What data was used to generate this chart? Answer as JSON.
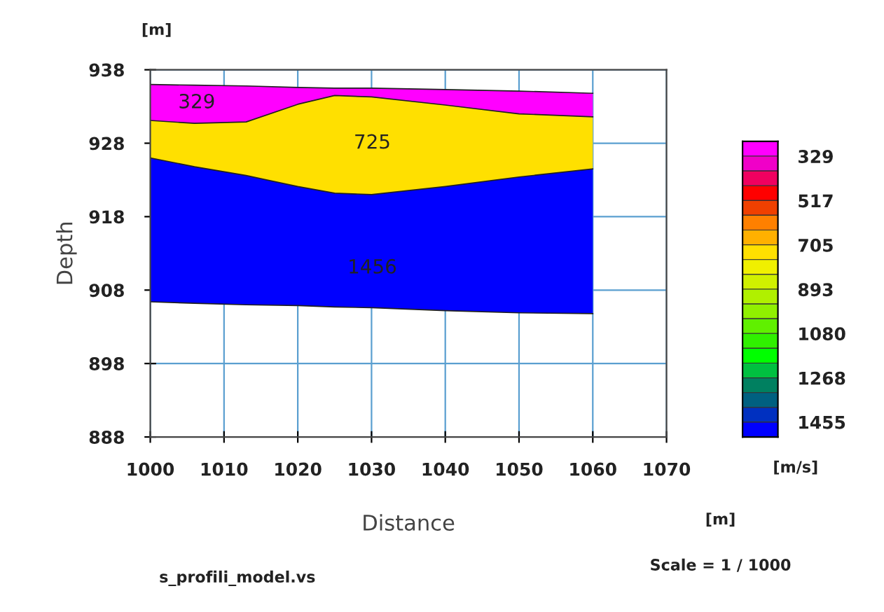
{
  "chart_data": {
    "type": "area",
    "xlabel": "Distance",
    "ylabel": "Depth",
    "clabel": "[m/s]",
    "x": [
      1000,
      1006,
      1013,
      1020,
      1025,
      1030,
      1040,
      1050,
      1060
    ],
    "series": [
      {
        "color": "#ff00ff",
        "values": [
          936.0,
          935.9,
          935.8,
          935.6,
          935.5,
          935.5,
          935.3,
          935.1,
          934.8
        ]
      },
      {
        "color": "#ffe000",
        "values": [
          931.1,
          930.7,
          930.9,
          933.3,
          934.5,
          934.3,
          933.2,
          932.0,
          931.6
        ]
      },
      {
        "color": "#0000ff",
        "values": [
          926.0,
          924.8,
          923.6,
          922.1,
          921.2,
          921.0,
          922.1,
          923.4,
          924.5
        ]
      },
      {
        "type": "line",
        "color": "#202020",
        "values": [
          906.4,
          906.2,
          906.0,
          905.9,
          905.7,
          905.6,
          905.2,
          904.9,
          904.8
        ]
      }
    ],
    "xlim": [
      1000,
      1070
    ],
    "xticks": [
      1000,
      1010,
      1020,
      1030,
      1040,
      1050,
      1060,
      1070
    ],
    "ylim": [
      888,
      938
    ],
    "yticks": [
      888,
      898,
      908,
      918,
      928,
      938
    ],
    "grid": true,
    "clim": [
      1518,
      266
    ],
    "cticks": [
      329,
      517,
      705,
      893,
      1080,
      1268,
      1455
    ],
    "colors": [
      "#ff00ff",
      "#f000c8",
      "#f00060",
      "#ff0000",
      "#f04000",
      "#ff8000",
      "#ffb000",
      "#ffe000",
      "#f0f000",
      "#d0f000",
      "#b0f000",
      "#90f000",
      "#60f000",
      "#30f000",
      "#00ff00",
      "#00c040",
      "#008060",
      "#006080",
      "#0030c0",
      "#0000ff"
    ],
    "annotations": [
      "329",
      "725",
      "1456",
      "[m]",
      "[m]",
      "Scale = 1 / 1000",
      "s_profili_model.vs"
    ]
  }
}
